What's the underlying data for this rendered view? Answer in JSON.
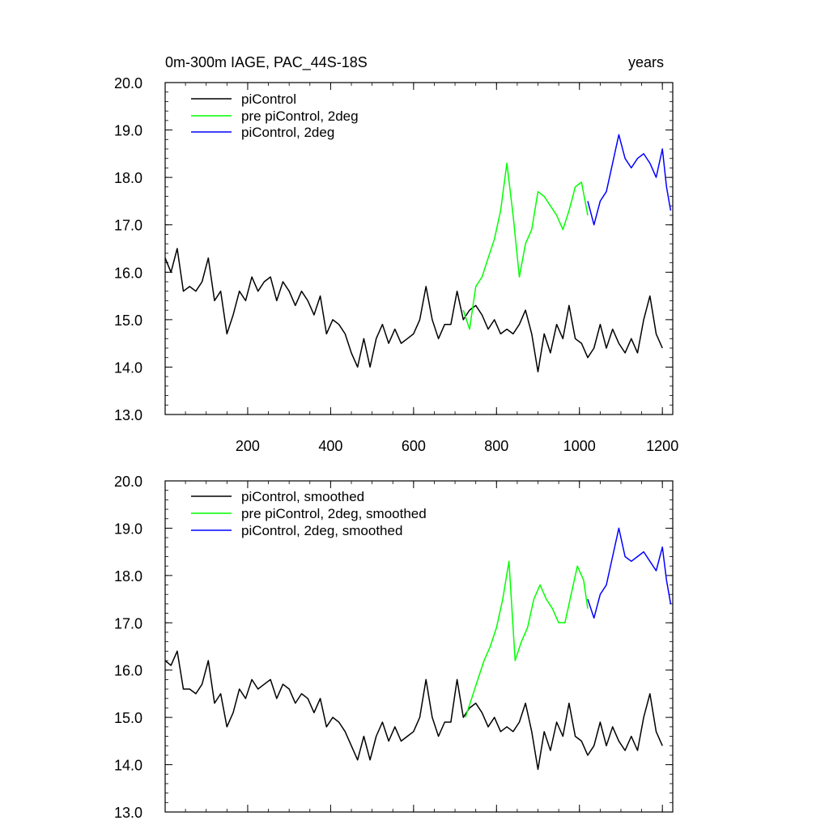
{
  "chart_data": [
    {
      "type": "line",
      "title_left": "0m-300m IAGE, PAC_44S-18S",
      "title_right": "years",
      "xlabel": "",
      "ylabel": "",
      "xlim": [
        1,
        1225
      ],
      "ylim": [
        13.0,
        20.0
      ],
      "xticks": [
        200,
        400,
        600,
        800,
        1000,
        1200
      ],
      "xtick_labels": [
        "200",
        "400",
        "600",
        "800",
        "1000",
        "1200"
      ],
      "yticks": [
        13,
        14,
        15,
        16,
        17,
        18,
        19,
        20
      ],
      "ytick_labels": [
        "13.0",
        "14.0",
        "15.0",
        "16.0",
        "17.0",
        "18.0",
        "19.0",
        "20.0"
      ],
      "legend_position": "top-left",
      "series": [
        {
          "name": "piControl",
          "color": "#000000",
          "x": [
            1,
            15,
            30,
            45,
            60,
            75,
            90,
            105,
            120,
            135,
            150,
            165,
            180,
            195,
            210,
            225,
            240,
            255,
            270,
            285,
            300,
            315,
            330,
            345,
            360,
            375,
            390,
            405,
            420,
            435,
            450,
            465,
            480,
            495,
            510,
            525,
            540,
            555,
            570,
            585,
            600,
            615,
            630,
            645,
            660,
            675,
            690,
            705,
            720,
            735,
            750,
            765,
            780,
            795,
            810,
            825,
            840,
            855,
            870,
            885,
            900,
            915,
            930,
            945,
            960,
            975,
            990,
            1005,
            1020,
            1035,
            1050,
            1065,
            1080,
            1095,
            1110,
            1125,
            1140,
            1155,
            1170,
            1185,
            1200
          ],
          "values": [
            16.3,
            16.0,
            16.5,
            15.6,
            15.7,
            15.6,
            15.8,
            16.3,
            15.4,
            15.6,
            14.7,
            15.1,
            15.6,
            15.4,
            15.9,
            15.6,
            15.8,
            15.9,
            15.4,
            15.8,
            15.6,
            15.3,
            15.6,
            15.4,
            15.1,
            15.5,
            14.7,
            15.0,
            14.9,
            14.7,
            14.3,
            14.0,
            14.6,
            14.0,
            14.6,
            14.9,
            14.5,
            14.8,
            14.5,
            14.6,
            14.7,
            15.0,
            15.7,
            15.0,
            14.6,
            14.9,
            14.9,
            15.6,
            15.0,
            15.2,
            15.3,
            15.1,
            14.8,
            15.0,
            14.7,
            14.8,
            14.7,
            14.9,
            15.2,
            14.7,
            13.9,
            14.7,
            14.3,
            14.9,
            14.6,
            15.3,
            14.6,
            14.5,
            14.2,
            14.4,
            14.9,
            14.4,
            14.8,
            14.5,
            14.3,
            14.6,
            14.3,
            15.0,
            15.5,
            14.7,
            14.4
          ]
        },
        {
          "name": "pre piControl, 2deg",
          "color": "#00ff00",
          "x": [
            720,
            735,
            750,
            765,
            780,
            795,
            810,
            825,
            840,
            855,
            870,
            885,
            900,
            915,
            930,
            945,
            960,
            975,
            990,
            1005,
            1020
          ],
          "values": [
            15.2,
            14.8,
            15.7,
            15.9,
            16.3,
            16.7,
            17.3,
            18.3,
            17.2,
            15.9,
            16.6,
            16.9,
            17.7,
            17.6,
            17.4,
            17.2,
            16.9,
            17.3,
            17.8,
            17.9,
            17.2
          ]
        },
        {
          "name": "piControl, 2deg",
          "color": "#0000ff",
          "x": [
            1020,
            1035,
            1050,
            1065,
            1080,
            1095,
            1110,
            1125,
            1140,
            1155,
            1170,
            1185,
            1200,
            1210,
            1220
          ],
          "values": [
            17.5,
            17.0,
            17.5,
            17.7,
            18.3,
            18.9,
            18.4,
            18.2,
            18.4,
            18.5,
            18.3,
            18.0,
            18.6,
            17.8,
            17.3
          ]
        }
      ]
    },
    {
      "type": "line",
      "title_left": "",
      "title_right": "",
      "xlabel": "",
      "ylabel": "",
      "xlim": [
        1,
        1225
      ],
      "ylim": [
        13.0,
        20.0
      ],
      "xticks": [
        200,
        400,
        600,
        800,
        1000,
        1200
      ],
      "xtick_labels": [],
      "yticks": [
        13,
        14,
        15,
        16,
        17,
        18,
        19,
        20
      ],
      "ytick_labels": [
        "13.0",
        "14.0",
        "15.0",
        "16.0",
        "17.0",
        "18.0",
        "19.0",
        "20.0"
      ],
      "legend_position": "top-left",
      "series": [
        {
          "name": "piControl, smoothed",
          "color": "#000000",
          "x": [
            1,
            15,
            30,
            45,
            60,
            75,
            90,
            105,
            120,
            135,
            150,
            165,
            180,
            195,
            210,
            225,
            240,
            255,
            270,
            285,
            300,
            315,
            330,
            345,
            360,
            375,
            390,
            405,
            420,
            435,
            450,
            465,
            480,
            495,
            510,
            525,
            540,
            555,
            570,
            585,
            600,
            615,
            630,
            645,
            660,
            675,
            690,
            705,
            720,
            735,
            750,
            765,
            780,
            795,
            810,
            825,
            840,
            855,
            870,
            885,
            900,
            915,
            930,
            945,
            960,
            975,
            990,
            1005,
            1020,
            1035,
            1050,
            1065,
            1080,
            1095,
            1110,
            1125,
            1140,
            1155,
            1170,
            1185,
            1200
          ],
          "values": [
            16.2,
            16.1,
            16.4,
            15.6,
            15.6,
            15.5,
            15.7,
            16.2,
            15.3,
            15.5,
            14.8,
            15.1,
            15.6,
            15.4,
            15.8,
            15.6,
            15.7,
            15.8,
            15.4,
            15.7,
            15.6,
            15.3,
            15.5,
            15.4,
            15.1,
            15.4,
            14.8,
            15.0,
            14.9,
            14.7,
            14.4,
            14.1,
            14.6,
            14.1,
            14.6,
            14.9,
            14.5,
            14.8,
            14.5,
            14.6,
            14.7,
            15.0,
            15.8,
            15.0,
            14.6,
            14.9,
            14.9,
            15.8,
            15.0,
            15.2,
            15.3,
            15.1,
            14.8,
            15.0,
            14.7,
            14.8,
            14.7,
            14.9,
            15.3,
            14.7,
            13.9,
            14.7,
            14.3,
            14.9,
            14.6,
            15.3,
            14.6,
            14.5,
            14.2,
            14.4,
            14.9,
            14.4,
            14.8,
            14.5,
            14.3,
            14.6,
            14.3,
            15.0,
            15.5,
            14.7,
            14.4
          ]
        },
        {
          "name": "pre piControl, 2deg, smoothed",
          "color": "#00ff00",
          "x": [
            725,
            740,
            755,
            770,
            785,
            800,
            815,
            830,
            845,
            860,
            875,
            890,
            905,
            920,
            935,
            950,
            965,
            980,
            995,
            1010,
            1020
          ],
          "values": [
            15.0,
            15.4,
            15.8,
            16.2,
            16.5,
            16.9,
            17.5,
            18.3,
            16.2,
            16.6,
            16.9,
            17.5,
            17.8,
            17.5,
            17.3,
            17.0,
            17.0,
            17.6,
            18.2,
            17.9,
            17.3
          ]
        },
        {
          "name": "piControl, 2deg, smoothed",
          "color": "#0000ff",
          "x": [
            1020,
            1035,
            1050,
            1065,
            1080,
            1095,
            1110,
            1125,
            1140,
            1155,
            1170,
            1185,
            1200,
            1210,
            1220
          ],
          "values": [
            17.5,
            17.1,
            17.6,
            17.8,
            18.4,
            19.0,
            18.4,
            18.3,
            18.4,
            18.5,
            18.3,
            18.1,
            18.6,
            17.9,
            17.4
          ]
        }
      ]
    }
  ]
}
